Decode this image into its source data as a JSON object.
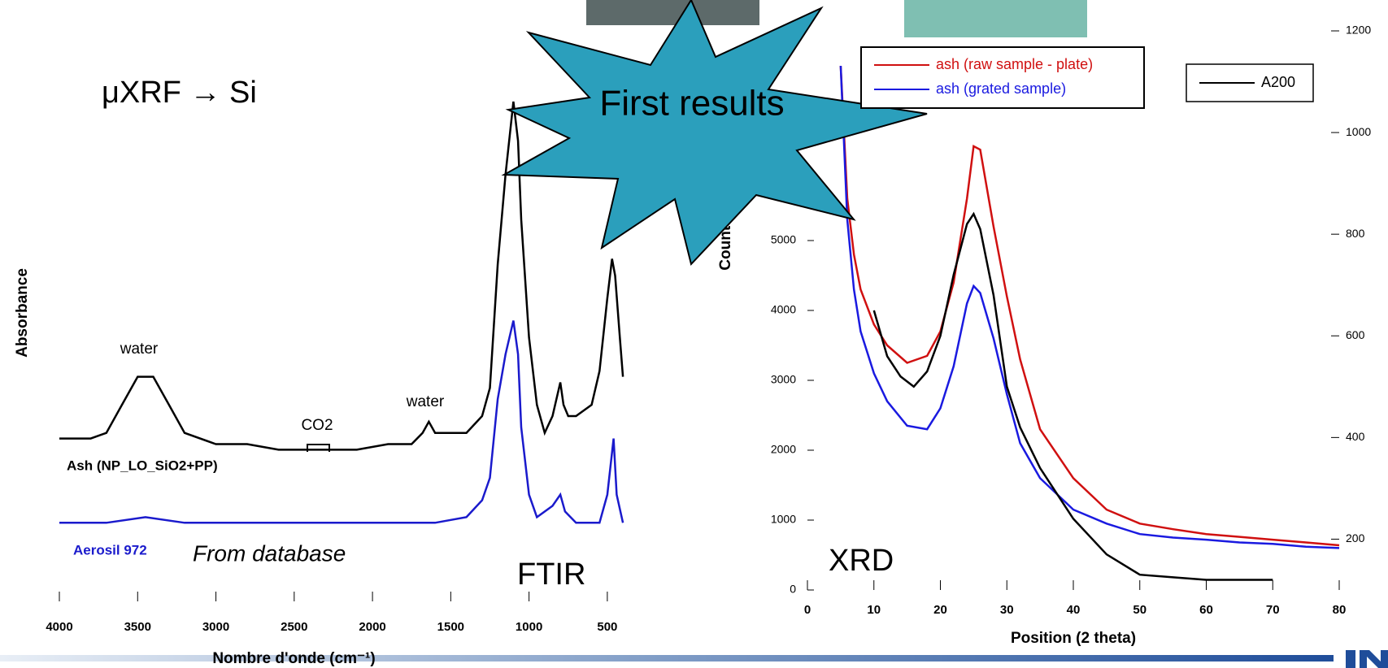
{
  "slide": {
    "banner": "First results",
    "technique": "μXRF → Si",
    "note": "From database"
  },
  "chart_data": [
    {
      "type": "line",
      "title": "FTIR",
      "x_label": "Nombre d'onde (cm⁻¹)",
      "y_label": "Absorbance",
      "xlim": [
        4000,
        380
      ],
      "xticks": [
        4000,
        3500,
        3000,
        2500,
        2000,
        1500,
        1000,
        500
      ],
      "ylim": [
        0,
        1
      ],
      "series": [
        {
          "name": "Ash (NP_LO_SiO2+PP)",
          "color": "#000000",
          "x": [
            4000,
            3800,
            3700,
            3600,
            3500,
            3450,
            3400,
            3300,
            3200,
            3000,
            2800,
            2600,
            2500,
            2400,
            2300,
            2100,
            1900,
            1750,
            1680,
            1640,
            1600,
            1550,
            1450,
            1400,
            1300,
            1250,
            1200,
            1150,
            1100,
            1070,
            1050,
            1000,
            950,
            900,
            850,
            800,
            780,
            750,
            700,
            600,
            550,
            500,
            470,
            450,
            420,
            400
          ],
          "values": [
            0.29,
            0.29,
            0.3,
            0.35,
            0.4,
            0.4,
            0.4,
            0.35,
            0.3,
            0.28,
            0.28,
            0.27,
            0.27,
            0.27,
            0.27,
            0.27,
            0.28,
            0.28,
            0.3,
            0.32,
            0.3,
            0.3,
            0.3,
            0.3,
            0.33,
            0.38,
            0.6,
            0.76,
            0.89,
            0.82,
            0.68,
            0.47,
            0.35,
            0.3,
            0.33,
            0.39,
            0.35,
            0.33,
            0.33,
            0.35,
            0.41,
            0.54,
            0.61,
            0.58,
            0.47,
            0.4
          ]
        },
        {
          "name": "Aerosil 972",
          "color": "#1a1acc",
          "x": [
            4000,
            3700,
            3450,
            3200,
            2500,
            1600,
            1400,
            1300,
            1250,
            1200,
            1150,
            1100,
            1070,
            1050,
            1000,
            950,
            850,
            800,
            770,
            700,
            550,
            500,
            460,
            440,
            400
          ],
          "values": [
            0.14,
            0.14,
            0.15,
            0.14,
            0.14,
            0.14,
            0.15,
            0.18,
            0.22,
            0.36,
            0.44,
            0.5,
            0.44,
            0.31,
            0.19,
            0.15,
            0.17,
            0.19,
            0.16,
            0.14,
            0.14,
            0.19,
            0.29,
            0.19,
            0.14
          ]
        }
      ],
      "annotations": [
        "water",
        "CO2",
        "water"
      ]
    },
    {
      "type": "line",
      "title": "XRD",
      "x_label": "Position (2 theta)",
      "y_label": "Counts",
      "xlim": [
        0,
        80
      ],
      "xticks": [
        0,
        10,
        20,
        30,
        40,
        50,
        60,
        70,
        80
      ],
      "ylim": [
        0,
        8000
      ],
      "yticks": [
        0,
        1000,
        2000,
        3000,
        4000,
        5000
      ],
      "y2lim": [
        100,
        1200
      ],
      "y2ticks": [
        200,
        400,
        600,
        800,
        1000,
        1200
      ],
      "series": [
        {
          "name": "ash (raw sample - plate)",
          "color": "#d01010",
          "x": [
            5,
            6,
            7,
            8,
            10,
            12,
            15,
            18,
            20,
            22,
            24,
            25,
            26,
            28,
            30,
            32,
            35,
            40,
            45,
            50,
            55,
            60,
            65,
            70,
            75,
            80
          ],
          "values": [
            7500,
            5600,
            4800,
            4300,
            3800,
            3500,
            3250,
            3350,
            3700,
            4400,
            5600,
            6350,
            6300,
            5200,
            4200,
            3300,
            2300,
            1600,
            1150,
            950,
            870,
            800,
            760,
            720,
            680,
            640
          ]
        },
        {
          "name": "ash (grated sample)",
          "color": "#1a1ae0",
          "x": [
            5,
            6,
            7,
            8,
            10,
            12,
            15,
            18,
            20,
            22,
            24,
            25,
            26,
            28,
            30,
            32,
            35,
            40,
            45,
            50,
            55,
            60,
            65,
            70,
            75,
            80
          ],
          "values": [
            7500,
            5300,
            4300,
            3700,
            3100,
            2700,
            2350,
            2300,
            2600,
            3200,
            4100,
            4350,
            4250,
            3600,
            2800,
            2100,
            1600,
            1150,
            950,
            800,
            750,
            720,
            680,
            660,
            620,
            600
          ]
        },
        {
          "name": "A200",
          "color": "#000000",
          "axis": "y2",
          "x": [
            10,
            12,
            14,
            16,
            18,
            20,
            22,
            24,
            25,
            26,
            28,
            30,
            32,
            35,
            40,
            45,
            50,
            55,
            60,
            65,
            70
          ],
          "values": [
            650,
            560,
            520,
            500,
            530,
            600,
            720,
            820,
            840,
            810,
            680,
            500,
            420,
            340,
            240,
            170,
            130,
            125,
            120,
            120,
            120
          ]
        }
      ]
    }
  ]
}
